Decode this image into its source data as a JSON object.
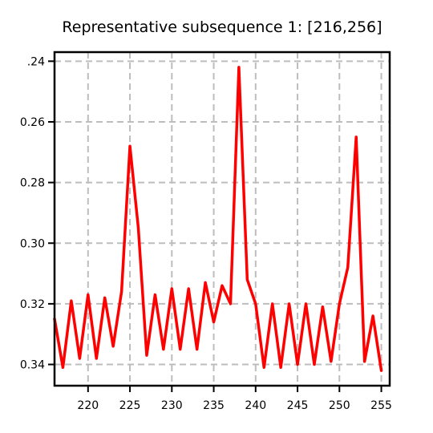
{
  "chart_data": {
    "type": "line",
    "title": "Representative subsequence 1: [216,256]",
    "xlabel": "",
    "ylabel": "",
    "xlim": [
      216,
      256
    ],
    "ylim": [
      0.237,
      0.347
    ],
    "y_inverted": true,
    "grid": true,
    "x_ticks": [
      220,
      225,
      230,
      235,
      240,
      245,
      250,
      255
    ],
    "y_ticks": [
      0.24,
      0.26,
      0.28,
      0.3,
      0.32,
      0.34
    ],
    "y_tick_labels": [
      ".24",
      "0.26",
      "0.28",
      "0.30",
      "0.32",
      "0.34"
    ],
    "series": [
      {
        "color": "#ff0000",
        "x": [
          216,
          217,
          218,
          219,
          220,
          221,
          222,
          223,
          224,
          225,
          226,
          227,
          228,
          229,
          230,
          231,
          232,
          233,
          234,
          235,
          236,
          237,
          238,
          239,
          240,
          241,
          242,
          243,
          244,
          245,
          246,
          247,
          248,
          249,
          250,
          251,
          252,
          253,
          254,
          255
        ],
        "y": [
          0.325,
          0.341,
          0.319,
          0.338,
          0.317,
          0.338,
          0.318,
          0.334,
          0.316,
          0.268,
          0.295,
          0.337,
          0.317,
          0.335,
          0.315,
          0.335,
          0.315,
          0.335,
          0.313,
          0.326,
          0.314,
          0.32,
          0.242,
          0.312,
          0.32,
          0.341,
          0.32,
          0.341,
          0.32,
          0.34,
          0.32,
          0.34,
          0.321,
          0.339,
          0.32,
          0.308,
          0.265,
          0.339,
          0.324,
          0.342
        ]
      }
    ]
  }
}
